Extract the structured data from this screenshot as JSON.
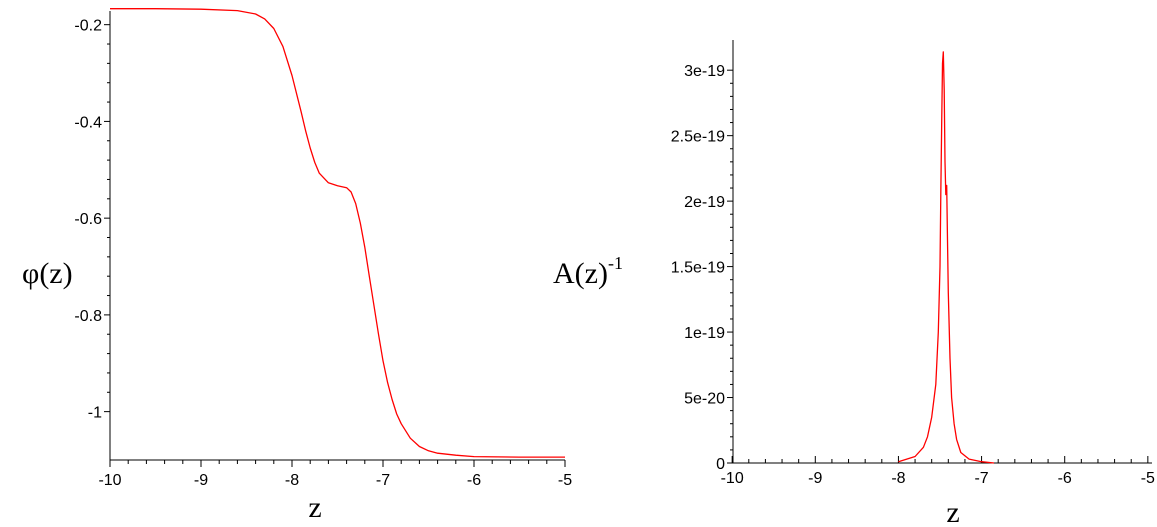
{
  "chart_data": [
    {
      "type": "line",
      "title": "",
      "xlabel": "z",
      "ylabel": "φ(z)",
      "xlim": [
        -10,
        -5
      ],
      "ylim": [
        -1.1,
        -0.18
      ],
      "x_ticks": [
        -10,
        -9,
        -8,
        -7,
        -6,
        -5
      ],
      "x_tick_labels": [
        "-10",
        "-9",
        "-8",
        "-7",
        "-6",
        "-5"
      ],
      "y_ticks": [
        -0.2,
        -0.4,
        -0.6,
        -0.8,
        -1.0
      ],
      "y_tick_labels": [
        "-0.2",
        "-0.4",
        "-0.6",
        "-0.8",
        "-1"
      ],
      "grid": false,
      "series": [
        {
          "color": "#ff0000",
          "x": [
            -10,
            -9.5,
            -9,
            -8.6,
            -8.4,
            -8.3,
            -8.2,
            -8.1,
            -8.0,
            -7.9,
            -7.85,
            -7.8,
            -7.75,
            -7.7,
            -7.6,
            -7.5,
            -7.4,
            -7.35,
            -7.3,
            -7.25,
            -7.2,
            -7.15,
            -7.1,
            -7.05,
            -7.0,
            -6.95,
            -6.9,
            -6.85,
            -6.8,
            -6.7,
            -6.6,
            -6.5,
            -6.4,
            -6.2,
            -6.0,
            -5.5,
            -5.0
          ],
          "y": [
            -0.167,
            -0.167,
            -0.168,
            -0.171,
            -0.178,
            -0.188,
            -0.208,
            -0.245,
            -0.305,
            -0.38,
            -0.42,
            -0.455,
            -0.485,
            -0.507,
            -0.527,
            -0.533,
            -0.537,
            -0.546,
            -0.57,
            -0.61,
            -0.66,
            -0.72,
            -0.78,
            -0.84,
            -0.895,
            -0.94,
            -0.975,
            -1.005,
            -1.025,
            -1.055,
            -1.072,
            -1.081,
            -1.086,
            -1.09,
            -1.093,
            -1.094,
            -1.094
          ]
        }
      ]
    },
    {
      "type": "line",
      "title": "",
      "xlabel": "z",
      "ylabel": "A(z)",
      "ylabel_superscript": "-1",
      "xlim": [
        -10.05,
        -4.95
      ],
      "ylim": [
        0,
        3.2e-19
      ],
      "x_ticks": [
        -10,
        -9,
        -8,
        -7,
        -6,
        -5
      ],
      "x_tick_labels": [
        "-10",
        "-9",
        "-8",
        "-7",
        "-6",
        "-5"
      ],
      "y_ticks": [
        0,
        5e-20,
        1e-19,
        1.5e-19,
        2e-19,
        2.5e-19,
        3e-19
      ],
      "y_tick_labels": [
        "0",
        "5e-20",
        "1e-19",
        "1.5e-19",
        "2e-19",
        "2.5e-19",
        "3e-19"
      ],
      "grid": false,
      "series": [
        {
          "color": "#ff0000",
          "x": [
            -8.0,
            -7.8,
            -7.7,
            -7.65,
            -7.6,
            -7.55,
            -7.52,
            -7.5,
            -7.49,
            -7.48,
            -7.47,
            -7.46,
            -7.45,
            -7.44,
            -7.43,
            -7.42,
            -7.41,
            -7.4,
            -7.38,
            -7.36,
            -7.33,
            -7.3,
            -7.25,
            -7.15,
            -7.0,
            -6.85
          ],
          "y": [
            1e-21,
            5e-21,
            1.2e-20,
            2e-20,
            3.5e-20,
            6e-20,
            1e-19,
            1.5e-19,
            2.05e-19,
            2.6e-19,
            3.05e-19,
            3.14e-19,
            2.85e-19,
            2.3e-19,
            2.05e-19,
            2.12e-19,
            1.7e-19,
            1.3e-19,
            8e-20,
            5e-20,
            3e-20,
            1.8e-20,
            8e-21,
            3e-21,
            1e-21,
            0
          ]
        }
      ]
    }
  ]
}
